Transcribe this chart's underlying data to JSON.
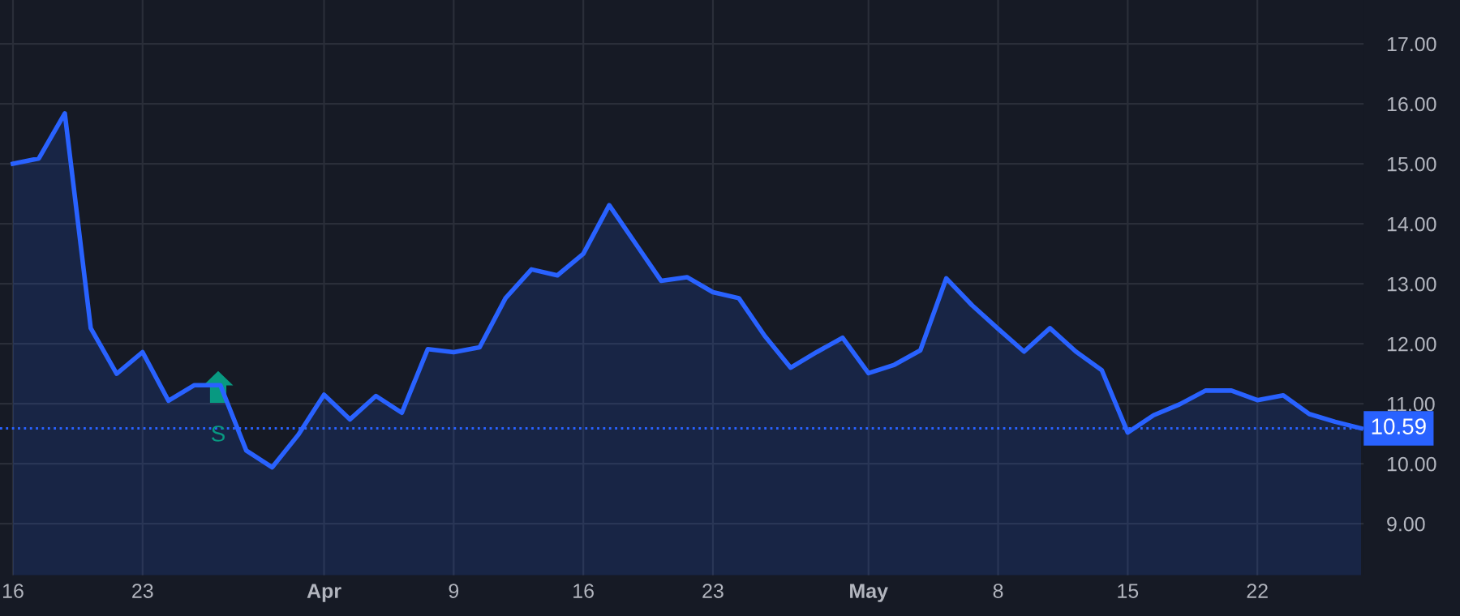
{
  "chart_data": {
    "type": "area",
    "categories": [
      "16",
      null,
      null,
      null,
      null,
      "23",
      null,
      null,
      null,
      null,
      null,
      null,
      "Apr",
      null,
      null,
      null,
      null,
      "9",
      null,
      null,
      null,
      null,
      "16",
      null,
      null,
      null,
      null,
      "23",
      null,
      null,
      null,
      null,
      null,
      "May",
      null,
      null,
      null,
      null,
      "8",
      null,
      null,
      null,
      null,
      "15",
      null,
      null,
      null,
      null,
      "22",
      null,
      null,
      null,
      null
    ],
    "series": [
      {
        "color": "#2962ff",
        "values": [
          15.0,
          15.09,
          15.84,
          12.26,
          11.5,
          11.86,
          11.05,
          11.31,
          11.31,
          10.22,
          9.94,
          10.48,
          11.15,
          10.74,
          11.13,
          10.85,
          11.91,
          11.86,
          11.94,
          12.76,
          13.24,
          13.14,
          13.5,
          14.31,
          13.68,
          13.05,
          13.11,
          12.86,
          12.76,
          12.13,
          11.6,
          11.86,
          12.1,
          11.51,
          11.65,
          11.89,
          13.09,
          12.64,
          12.25,
          11.87,
          12.26,
          11.87,
          11.56,
          10.52,
          10.81,
          10.99,
          11.22,
          11.22,
          11.06,
          11.14,
          10.83,
          10.7,
          10.59
        ]
      }
    ],
    "ylim": [
      8.14,
      17.73
    ],
    "yticks": [
      {
        "value": 9,
        "label": "9.00"
      },
      {
        "value": 10,
        "label": "10.00"
      },
      {
        "value": 11,
        "label": "11.00"
      },
      {
        "value": 12,
        "label": "12.00"
      },
      {
        "value": 13,
        "label": "13.00"
      },
      {
        "value": 14,
        "label": "14.00"
      },
      {
        "value": 15,
        "label": "15.00"
      },
      {
        "value": 16,
        "label": "16.00"
      },
      {
        "value": 17,
        "label": "17.00"
      }
    ],
    "ref_lines": [
      {
        "axis": "y",
        "value": 10.59,
        "label": "10.59",
        "color": "#2962ff",
        "line_style": "dotted"
      }
    ],
    "annotations": [
      "S"
    ],
    "grid": true,
    "line_style": "solid"
  }
}
